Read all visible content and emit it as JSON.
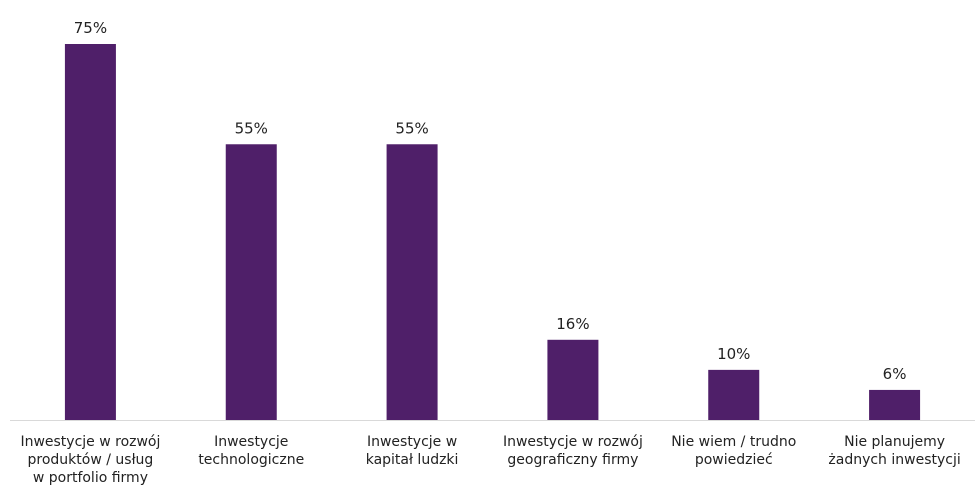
{
  "chart_data": {
    "type": "bar",
    "categories": [
      [
        "Inwestycje w rozwój",
        "produktów / usług",
        "w portfolio firmy"
      ],
      [
        "Inwestycje",
        "technologiczne"
      ],
      [
        "Inwestycje w",
        "kapitał ludzki"
      ],
      [
        "Inwestycje w rozwój",
        "geograficzny firmy"
      ],
      [
        "Nie  wiem / trudno",
        "powiedzieć"
      ],
      [
        "Nie planujemy",
        "żadnych inwestycji"
      ]
    ],
    "values": [
      75,
      55,
      55,
      16,
      10,
      6
    ],
    "value_labels": [
      "75%",
      "55%",
      "55%",
      "16%",
      "10%",
      "6%"
    ],
    "unit": "%",
    "title": "",
    "xlabel": "",
    "ylabel": "",
    "ylim": [
      0,
      75
    ],
    "grid": false,
    "legend": "none",
    "colors": {
      "bar": "#4F1F69",
      "axis": "#D9D9D9",
      "text": "#222222"
    }
  }
}
